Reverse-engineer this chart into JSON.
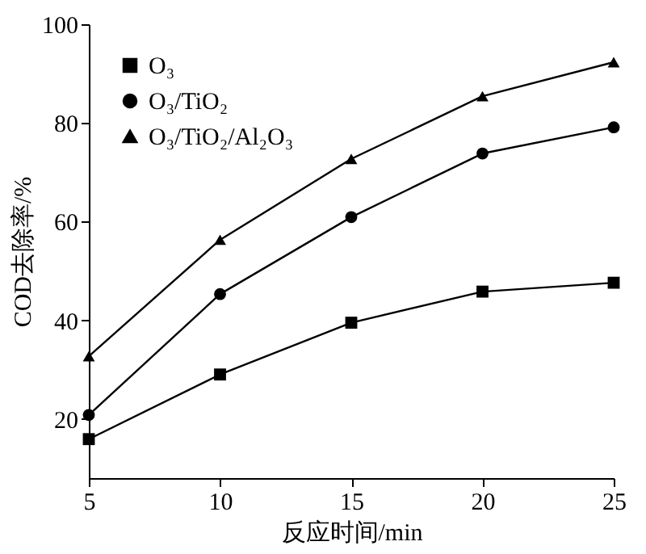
{
  "chart_data": {
    "type": "line",
    "xlabel": "反应时间/min",
    "ylabel": "COD去除率/%",
    "x": [
      5,
      10,
      15,
      20,
      25
    ],
    "series": [
      {
        "name": "O₃",
        "color": "#000000",
        "marker": "square",
        "values": [
          15.9,
          29.0,
          39.5,
          45.8,
          47.6
        ]
      },
      {
        "name": "O₃/TiO₂",
        "color": "#000000",
        "marker": "circle",
        "values": [
          20.8,
          45.3,
          60.9,
          73.8,
          79.1
        ]
      },
      {
        "name": "O₃/TiO₂/Al₂O₃",
        "color": "#000000",
        "marker": "triangle",
        "values": [
          32.7,
          56.3,
          72.7,
          85.4,
          92.3
        ]
      }
    ],
    "xlim": [
      5,
      25
    ],
    "xticks": [
      5,
      10,
      15,
      20,
      25
    ],
    "ylim": [
      8,
      100
    ],
    "yticks": [
      20,
      40,
      60,
      80,
      100
    ],
    "grid": false,
    "legend": "top left",
    "line_style": "solid"
  }
}
